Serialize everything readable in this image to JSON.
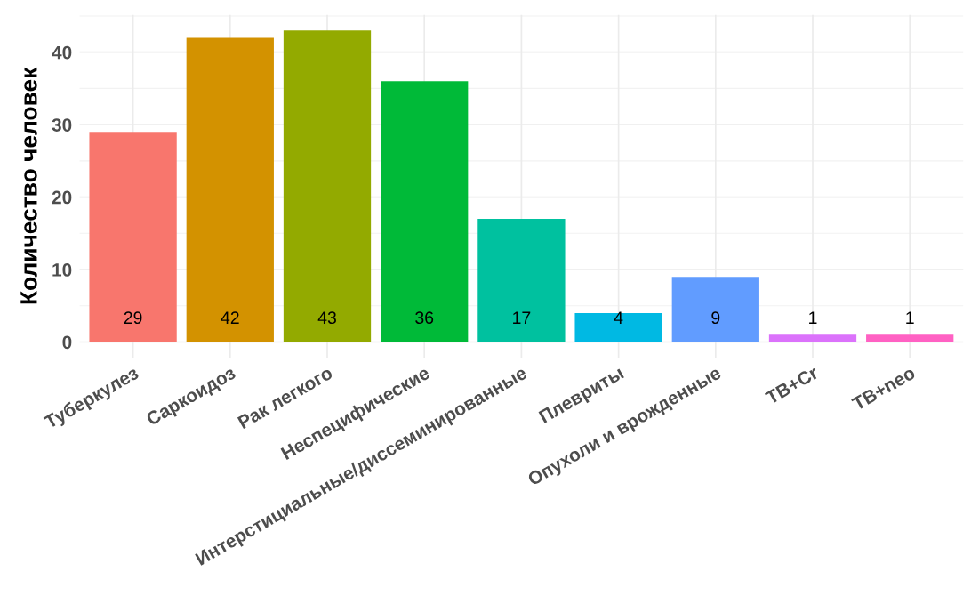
{
  "chart_data": {
    "type": "bar",
    "ylabel": "Количество человек",
    "categories": [
      "Туберкулез",
      "Саркоидоз",
      "Рак легкого",
      "Неспецифические",
      "Интерстициальные/диссеминированные",
      "Плевриты",
      "Опухоли и врожденные",
      "ТВ+Cr",
      "ТВ+neo"
    ],
    "values": [
      29,
      42,
      43,
      36,
      17,
      4,
      9,
      1,
      1
    ],
    "colors": [
      "#f8766d",
      "#d39200",
      "#93aa00",
      "#00ba38",
      "#00c19f",
      "#00b9e3",
      "#619cff",
      "#db72fb",
      "#ff61c3"
    ],
    "ylim": [
      -2.15,
      45.15
    ],
    "yticks": [
      0,
      10,
      20,
      30,
      40
    ],
    "grid": true,
    "data_labels": true
  }
}
